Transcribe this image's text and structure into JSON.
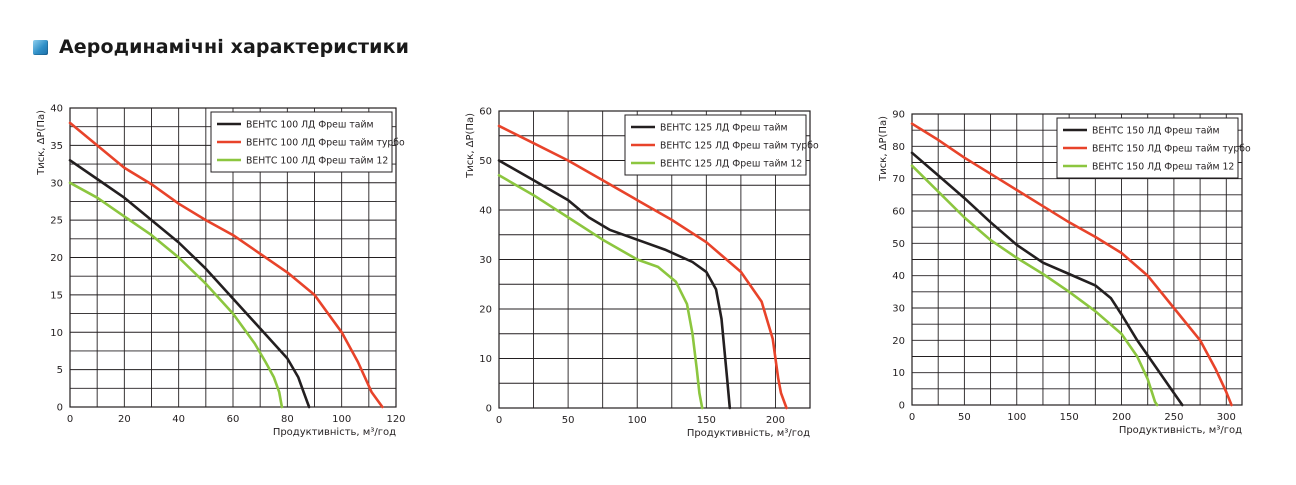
{
  "header": {
    "title": "Аеродинамічні характеристики",
    "icon": "square-bullet-icon"
  },
  "colors": {
    "black_series": "#231f20",
    "red_series": "#e8432a",
    "green_series": "#8cc63f",
    "grid": "#231f20"
  },
  "chart_data": [
    {
      "type": "line",
      "xlabel": "Продуктивність, м³/год",
      "ylabel": "Тиск, ΔP(Па)",
      "xlim": [
        0,
        120
      ],
      "ylim": [
        0,
        40
      ],
      "xticks": [
        0,
        20,
        40,
        60,
        80,
        100,
        120
      ],
      "yticks": [
        0,
        5,
        10,
        15,
        20,
        25,
        30,
        35,
        40
      ],
      "xgrid_step": 10,
      "ygrid_step": 2.5,
      "legend": "top-right",
      "series": [
        {
          "name": "ВЕНТС 100 ЛД Фреш тайм",
          "color": "#231f20",
          "points": [
            [
              0,
              33
            ],
            [
              10,
              30.5
            ],
            [
              20,
              28
            ],
            [
              30,
              25
            ],
            [
              40,
              22
            ],
            [
              50,
              18.5
            ],
            [
              60,
              14.5
            ],
            [
              70,
              10.5
            ],
            [
              80,
              6.5
            ],
            [
              84,
              4
            ],
            [
              86,
              2
            ],
            [
              88,
              0
            ]
          ]
        },
        {
          "name": "ВЕНТС 100 ЛД Фреш тайм турбо",
          "color": "#e8432a",
          "points": [
            [
              0,
              38
            ],
            [
              10,
              35
            ],
            [
              20,
              32
            ],
            [
              30,
              29.8
            ],
            [
              40,
              27.2
            ],
            [
              50,
              25
            ],
            [
              60,
              23
            ],
            [
              70,
              20.5
            ],
            [
              80,
              18
            ],
            [
              90,
              15
            ],
            [
              100,
              10
            ],
            [
              106,
              6
            ],
            [
              111,
              2
            ],
            [
              115,
              0
            ]
          ]
        },
        {
          "name": "ВЕНТС 100 ЛД Фреш тайм 12",
          "color": "#8cc63f",
          "points": [
            [
              0,
              30
            ],
            [
              10,
              28
            ],
            [
              20,
              25.5
            ],
            [
              30,
              23
            ],
            [
              40,
              20
            ],
            [
              50,
              16.5
            ],
            [
              60,
              12.5
            ],
            [
              68,
              8.5
            ],
            [
              72,
              6
            ],
            [
              75,
              4
            ],
            [
              77,
              2
            ],
            [
              78,
              0
            ]
          ]
        }
      ]
    },
    {
      "type": "line",
      "xlabel": "Продуктивність, м³/год",
      "ylabel": "Тиск, ΔP(Па)",
      "xlim": [
        0,
        225
      ],
      "ylim": [
        0,
        60
      ],
      "xticks": [
        0,
        50,
        100,
        150,
        200
      ],
      "yticks": [
        0,
        10,
        20,
        30,
        40,
        50,
        60
      ],
      "xgrid_step": 25,
      "ygrid_step": 5,
      "legend": "top-right",
      "series": [
        {
          "name": "ВЕНТС 125  ЛД Фреш тайм",
          "color": "#231f20",
          "points": [
            [
              0,
              50
            ],
            [
              25,
              46
            ],
            [
              50,
              42
            ],
            [
              65,
              38.5
            ],
            [
              80,
              36
            ],
            [
              100,
              34
            ],
            [
              120,
              32
            ],
            [
              140,
              29.5
            ],
            [
              150,
              27.5
            ],
            [
              157,
              24
            ],
            [
              161,
              18
            ],
            [
              163,
              12
            ],
            [
              165,
              6
            ],
            [
              167,
              0
            ]
          ]
        },
        {
          "name": "ВЕНТС 125  ЛД Фреш тайм турбо",
          "color": "#e8432a",
          "points": [
            [
              0,
              57
            ],
            [
              25,
              53.5
            ],
            [
              50,
              50
            ],
            [
              75,
              46
            ],
            [
              100,
              42
            ],
            [
              125,
              38
            ],
            [
              150,
              33.5
            ],
            [
              175,
              27.5
            ],
            [
              190,
              21.5
            ],
            [
              198,
              14
            ],
            [
              202,
              6
            ],
            [
              204,
              3
            ],
            [
              208,
              0
            ]
          ]
        },
        {
          "name": "ВЕНТС 125  ЛД Фреш тайм 12",
          "color": "#8cc63f",
          "points": [
            [
              0,
              47
            ],
            [
              25,
              43
            ],
            [
              50,
              38.5
            ],
            [
              75,
              34
            ],
            [
              100,
              30
            ],
            [
              115,
              28.5
            ],
            [
              128,
              25.5
            ],
            [
              136,
              21
            ],
            [
              140,
              15
            ],
            [
              143,
              8
            ],
            [
              145,
              3
            ],
            [
              147,
              0
            ]
          ]
        }
      ]
    },
    {
      "type": "line",
      "xlabel": "Продуктивність, м³/год",
      "ylabel": "Тиск, ΔP(Па)",
      "xlim": [
        0,
        315
      ],
      "ylim": [
        0,
        90
      ],
      "xticks": [
        0,
        50,
        100,
        150,
        200,
        250,
        300
      ],
      "yticks": [
        0,
        10,
        20,
        30,
        40,
        50,
        60,
        70,
        80,
        90
      ],
      "xgrid_step": 25,
      "ygrid_step": 5,
      "legend": "top-right",
      "series": [
        {
          "name": "ВЕНТС 150 ЛД Фреш тайм",
          "color": "#231f20",
          "points": [
            [
              0,
              78
            ],
            [
              25,
              71
            ],
            [
              50,
              64
            ],
            [
              75,
              56.5
            ],
            [
              100,
              49.5
            ],
            [
              125,
              44
            ],
            [
              150,
              40.5
            ],
            [
              175,
              37
            ],
            [
              190,
              33
            ],
            [
              200,
              28
            ],
            [
              215,
              20
            ],
            [
              230,
              13
            ],
            [
              245,
              6
            ],
            [
              258,
              0
            ]
          ]
        },
        {
          "name": "ВЕНТС 150 ЛД Фреш тайм турбо",
          "color": "#e8432a",
          "points": [
            [
              0,
              87
            ],
            [
              25,
              82
            ],
            [
              50,
              76.5
            ],
            [
              75,
              71.5
            ],
            [
              100,
              66.5
            ],
            [
              125,
              61.5
            ],
            [
              150,
              56.5
            ],
            [
              175,
              52
            ],
            [
              200,
              47
            ],
            [
              225,
              40
            ],
            [
              250,
              30
            ],
            [
              275,
              20
            ],
            [
              290,
              11
            ],
            [
              300,
              4
            ],
            [
              305,
              0
            ]
          ]
        },
        {
          "name": "ВЕНТС 150 ЛД Фреш тайм 12",
          "color": "#8cc63f",
          "points": [
            [
              0,
              74
            ],
            [
              25,
              66
            ],
            [
              50,
              58
            ],
            [
              75,
              51
            ],
            [
              100,
              45.5
            ],
            [
              125,
              40.5
            ],
            [
              150,
              35
            ],
            [
              175,
              29
            ],
            [
              200,
              22
            ],
            [
              215,
              15
            ],
            [
              225,
              8
            ],
            [
              232,
              1
            ],
            [
              234,
              0
            ]
          ]
        }
      ]
    }
  ]
}
